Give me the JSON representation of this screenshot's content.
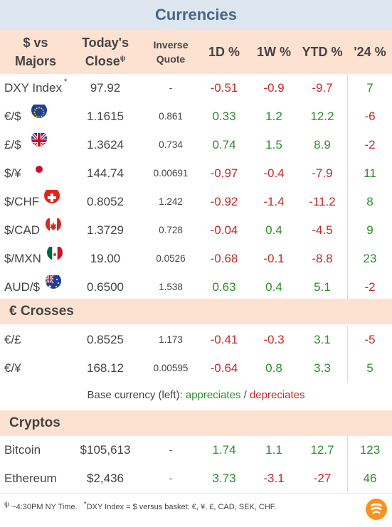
{
  "title": "Currencies",
  "headers": {
    "pair_l1": "$ vs",
    "pair_l2": "Majors",
    "close_l1": "Today's",
    "close_l2": "Close",
    "close_sup": "ψ",
    "inv_l1": "Inverse",
    "inv_l2": "Quote",
    "d1": "1D %",
    "w1": "1W %",
    "ytd": "YTD %",
    "y24": "'24 %"
  },
  "colors": {
    "up": "#2a8f2a",
    "down": "#c62828",
    "neutral": "#444444"
  },
  "chart_data": {
    "type": "table",
    "columns": [
      "$ vs Majors",
      "Today's Close",
      "Inverse Quote",
      "1D %",
      "1W %",
      "YTD %",
      "'24 %"
    ],
    "majors": [
      {
        "name": "DXY Index",
        "sup": "*",
        "icon": "",
        "close": "97.92",
        "inverse": "-",
        "d1": "-0.51",
        "w1": "-0.9",
        "ytd": "-9.7",
        "y24": "7"
      },
      {
        "name": "€/$",
        "icon": "eu-flag-icon",
        "close": "1.1615",
        "inverse": "0.861",
        "d1": "0.33",
        "w1": "1.2",
        "ytd": "12.2",
        "y24": "-6"
      },
      {
        "name": "£/$",
        "icon": "uk-flag-icon",
        "close": "1.3624",
        "inverse": "0.734",
        "d1": "0.74",
        "w1": "1.5",
        "ytd": "8.9",
        "y24": "-2"
      },
      {
        "name": "$/¥",
        "icon": "japan-flag-icon",
        "close": "144.74",
        "inverse": "0.00691",
        "d1": "-0.97",
        "w1": "-0.4",
        "ytd": "-7.9",
        "y24": "11"
      },
      {
        "name": "$/CHF",
        "icon": "swiss-flag-icon",
        "close": "0.8052",
        "inverse": "1.242",
        "d1": "-0.92",
        "w1": "-1.4",
        "ytd": "-11.2",
        "y24": "8"
      },
      {
        "name": "$/CAD",
        "icon": "canada-flag-icon",
        "close": "1.3729",
        "inverse": "0.728",
        "d1": "-0.04",
        "w1": "0.4",
        "ytd": "-4.5",
        "y24": "9"
      },
      {
        "name": "$/MXN",
        "icon": "mexico-flag-icon",
        "close": "19.00",
        "inverse": "0.0526",
        "d1": "-0.68",
        "w1": "-0.1",
        "ytd": "-8.8",
        "y24": "23"
      },
      {
        "name": "AUD/$",
        "icon": "australia-flag-icon",
        "close": "0.6500",
        "inverse": "1.538",
        "d1": "0.63",
        "w1": "0.4",
        "ytd": "5.1",
        "y24": "-2"
      }
    ],
    "crosses_title": "€ Crosses",
    "crosses": [
      {
        "name": "€/£",
        "close": "0.8525",
        "inverse": "1.173",
        "d1": "-0.41",
        "w1": "-0.3",
        "ytd": "3.1",
        "y24": "-5"
      },
      {
        "name": "€/¥",
        "close": "168.12",
        "inverse": "0.00595",
        "d1": "-0.64",
        "w1": "0.8",
        "ytd": "3.3",
        "y24": "5"
      }
    ],
    "cryptos_title": "Cryptos",
    "cryptos": [
      {
        "name": "Bitcoin",
        "close": "$105,613",
        "inverse": "-",
        "d1": "1.74",
        "w1": "1.1",
        "ytd": "12.7",
        "y24": "123"
      },
      {
        "name": "Ethereum",
        "close": "$2,436",
        "inverse": "-",
        "d1": "3.73",
        "w1": "-3.1",
        "ytd": "-27",
        "y24": "46"
      }
    ]
  },
  "legend": {
    "prefix": "Base currency (left):",
    "up": "appreciates",
    "sep": "/",
    "down": "depreciates"
  },
  "footnote": {
    "psi": "ψ",
    "psi_text": "~4:30PM NY Time.",
    "star": "*",
    "star_text": "DXY Index = $ versus basket: €, ¥, £, CAD, SEK, CHF."
  }
}
